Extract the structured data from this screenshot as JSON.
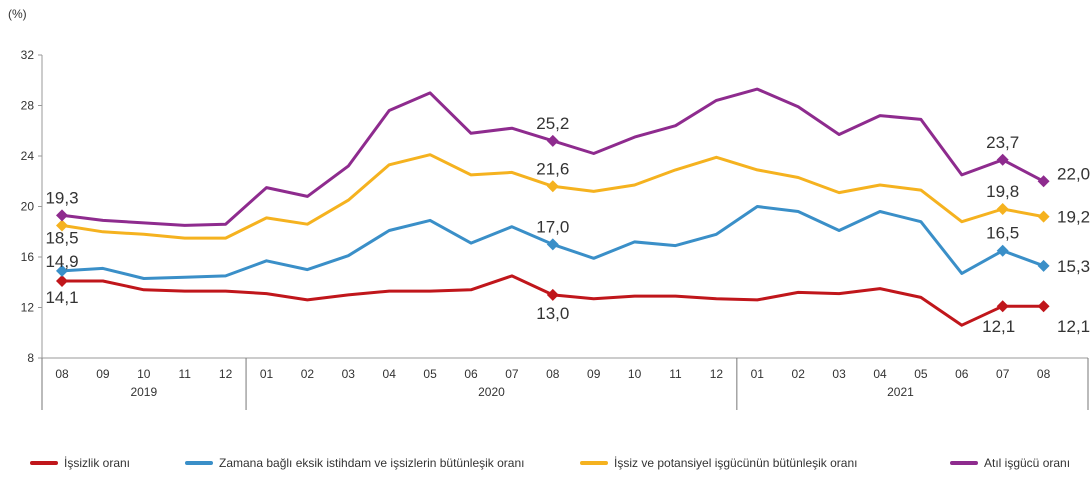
{
  "chart_data": {
    "type": "line",
    "title": "",
    "xlabel": "",
    "ylabel": "(%)",
    "ylim": [
      8,
      32
    ],
    "yticks": [
      "8",
      "12",
      "16",
      "20",
      "24",
      "28",
      "32"
    ],
    "grid": false,
    "legend_position": "bottom",
    "months": [
      "08",
      "09",
      "10",
      "11",
      "12",
      "01",
      "02",
      "03",
      "04",
      "05",
      "06",
      "07",
      "08",
      "09",
      "10",
      "11",
      "12",
      "01",
      "02",
      "03",
      "04",
      "05",
      "06",
      "07",
      "08"
    ],
    "years": [
      {
        "label": "2019",
        "start": 0,
        "end": 4
      },
      {
        "label": "2020",
        "start": 5,
        "end": 16
      },
      {
        "label": "2021",
        "start": 17,
        "end": 24
      }
    ],
    "series": [
      {
        "name": "İşsizlik oranı",
        "color": "#c0161b",
        "values": [
          14.1,
          14.1,
          13.4,
          13.3,
          13.3,
          13.1,
          12.6,
          13.0,
          13.3,
          13.3,
          13.4,
          14.5,
          13.0,
          12.7,
          12.9,
          12.9,
          12.7,
          12.6,
          13.2,
          13.1,
          13.5,
          12.8,
          10.6,
          12.1,
          12.1
        ]
      },
      {
        "name": "Zamana bağlı eksik istihdam ve işsizlerin bütünleşik oranı",
        "color": "#3a8fc8",
        "values": [
          14.9,
          15.1,
          14.3,
          14.4,
          14.5,
          15.7,
          15.0,
          16.1,
          18.1,
          18.9,
          17.1,
          18.4,
          17.0,
          15.9,
          17.2,
          16.9,
          17.8,
          20.0,
          19.6,
          18.1,
          19.6,
          18.8,
          14.7,
          16.5,
          15.3
        ]
      },
      {
        "name": "İşsiz ve potansiyel işgücünün bütünleşik oranı",
        "color": "#f5b21f",
        "values": [
          18.5,
          18.0,
          17.8,
          17.5,
          17.5,
          19.1,
          18.6,
          20.5,
          23.3,
          24.1,
          22.5,
          22.7,
          21.6,
          21.2,
          21.7,
          22.9,
          23.9,
          22.9,
          22.3,
          21.1,
          21.7,
          21.3,
          18.8,
          19.8,
          19.2
        ]
      },
      {
        "name": "Atıl işgücü oranı",
        "color": "#8e2b8e",
        "values": [
          19.3,
          18.9,
          18.7,
          18.5,
          18.6,
          21.5,
          20.8,
          23.2,
          27.6,
          29.0,
          25.8,
          26.2,
          25.2,
          24.2,
          25.5,
          26.4,
          28.4,
          29.3,
          27.9,
          25.7,
          27.2,
          26.9,
          22.5,
          23.7,
          22.0
        ]
      }
    ],
    "data_labels": [
      {
        "series": 0,
        "index": 0,
        "text": "14,1"
      },
      {
        "series": 0,
        "index": 12,
        "text": "13,0"
      },
      {
        "series": 0,
        "index": 23,
        "text": "12,1"
      },
      {
        "series": 0,
        "index": 24,
        "text": "12,1"
      },
      {
        "series": 1,
        "index": 0,
        "text": "14,9"
      },
      {
        "series": 1,
        "index": 12,
        "text": "17,0"
      },
      {
        "series": 1,
        "index": 23,
        "text": "16,5"
      },
      {
        "series": 1,
        "index": 24,
        "text": "15,3"
      },
      {
        "series": 2,
        "index": 0,
        "text": "18,5"
      },
      {
        "series": 2,
        "index": 12,
        "text": "21,6"
      },
      {
        "series": 2,
        "index": 23,
        "text": "19,8"
      },
      {
        "series": 2,
        "index": 24,
        "text": "19,2"
      },
      {
        "series": 3,
        "index": 0,
        "text": "19,3"
      },
      {
        "series": 3,
        "index": 12,
        "text": "25,2"
      },
      {
        "series": 3,
        "index": 23,
        "text": "23,7"
      },
      {
        "series": 3,
        "index": 24,
        "text": "22,0"
      }
    ],
    "marker_indices": [
      0,
      12,
      23,
      24
    ]
  }
}
